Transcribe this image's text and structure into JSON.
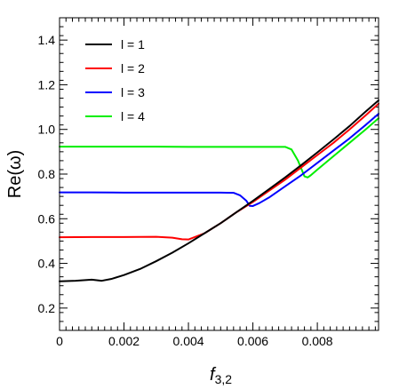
{
  "chart_data": {
    "type": "line",
    "xlabel_main": "f",
    "xlabel_sub": "3,2",
    "ylabel": "Re(ω)",
    "xlim": [
      0,
      0.0099
    ],
    "ylim": [
      0.1,
      1.5
    ],
    "x_ticks": [
      0,
      0.002,
      0.004,
      0.006,
      0.008
    ],
    "x_tick_labels": [
      "0",
      "0.002",
      "0.004",
      "0.006",
      "0.008"
    ],
    "y_ticks": [
      0.2,
      0.4,
      0.6,
      0.8,
      1.0,
      1.2,
      1.4
    ],
    "y_tick_labels": [
      "0.2",
      "0.4",
      "0.6",
      "0.8",
      "1.0",
      "1.2",
      "1.4"
    ],
    "grid": false,
    "legend_position": "top-left",
    "series": [
      {
        "name": "l = 1",
        "color": "#000000",
        "points": [
          [
            0,
            0.32
          ],
          [
            0.0005,
            0.322
          ],
          [
            0.001,
            0.327
          ],
          [
            0.0013,
            0.322
          ],
          [
            0.0016,
            0.33
          ],
          [
            0.002,
            0.348
          ],
          [
            0.0025,
            0.375
          ],
          [
            0.003,
            0.41
          ],
          [
            0.0035,
            0.448
          ],
          [
            0.004,
            0.49
          ],
          [
            0.0045,
            0.535
          ],
          [
            0.005,
            0.58
          ],
          [
            0.0055,
            0.63
          ],
          [
            0.006,
            0.68
          ],
          [
            0.0065,
            0.732
          ],
          [
            0.007,
            0.785
          ],
          [
            0.0075,
            0.84
          ],
          [
            0.008,
            0.897
          ],
          [
            0.0085,
            0.955
          ],
          [
            0.009,
            1.015
          ],
          [
            0.0095,
            1.08
          ],
          [
            0.0099,
            1.13
          ]
        ]
      },
      {
        "name": "l = 2",
        "color": "#ff0000",
        "points": [
          [
            0,
            0.517
          ],
          [
            0.001,
            0.518
          ],
          [
            0.002,
            0.518
          ],
          [
            0.003,
            0.519
          ],
          [
            0.0035,
            0.515
          ],
          [
            0.0038,
            0.508
          ],
          [
            0.004,
            0.507
          ],
          [
            0.0045,
            0.535
          ],
          [
            0.005,
            0.58
          ],
          [
            0.0055,
            0.63
          ],
          [
            0.006,
            0.675
          ],
          [
            0.0065,
            0.725
          ],
          [
            0.007,
            0.775
          ],
          [
            0.0075,
            0.83
          ],
          [
            0.008,
            0.885
          ],
          [
            0.0085,
            0.94
          ],
          [
            0.009,
            1.0
          ],
          [
            0.0095,
            1.063
          ],
          [
            0.0099,
            1.115
          ]
        ]
      },
      {
        "name": "l = 3",
        "color": "#0000ff",
        "points": [
          [
            0,
            0.718
          ],
          [
            0.001,
            0.718
          ],
          [
            0.002,
            0.717
          ],
          [
            0.003,
            0.717
          ],
          [
            0.004,
            0.717
          ],
          [
            0.005,
            0.717
          ],
          [
            0.0054,
            0.716
          ],
          [
            0.0056,
            0.705
          ],
          [
            0.0058,
            0.68
          ],
          [
            0.0059,
            0.658
          ],
          [
            0.006,
            0.657
          ],
          [
            0.0062,
            0.67
          ],
          [
            0.0065,
            0.695
          ],
          [
            0.007,
            0.745
          ],
          [
            0.0075,
            0.795
          ],
          [
            0.008,
            0.85
          ],
          [
            0.0085,
            0.905
          ],
          [
            0.009,
            0.96
          ],
          [
            0.0095,
            1.02
          ],
          [
            0.0099,
            1.07
          ]
        ]
      },
      {
        "name": "l = 4",
        "color": "#00ee00",
        "points": [
          [
            0,
            0.923
          ],
          [
            0.001,
            0.923
          ],
          [
            0.002,
            0.923
          ],
          [
            0.003,
            0.923
          ],
          [
            0.004,
            0.922
          ],
          [
            0.005,
            0.922
          ],
          [
            0.006,
            0.922
          ],
          [
            0.007,
            0.922
          ],
          [
            0.0072,
            0.91
          ],
          [
            0.0074,
            0.86
          ],
          [
            0.0076,
            0.79
          ],
          [
            0.0077,
            0.785
          ],
          [
            0.0078,
            0.795
          ],
          [
            0.008,
            0.82
          ],
          [
            0.0085,
            0.88
          ],
          [
            0.009,
            0.94
          ],
          [
            0.0095,
            1.0
          ],
          [
            0.0099,
            1.05
          ]
        ]
      }
    ]
  }
}
